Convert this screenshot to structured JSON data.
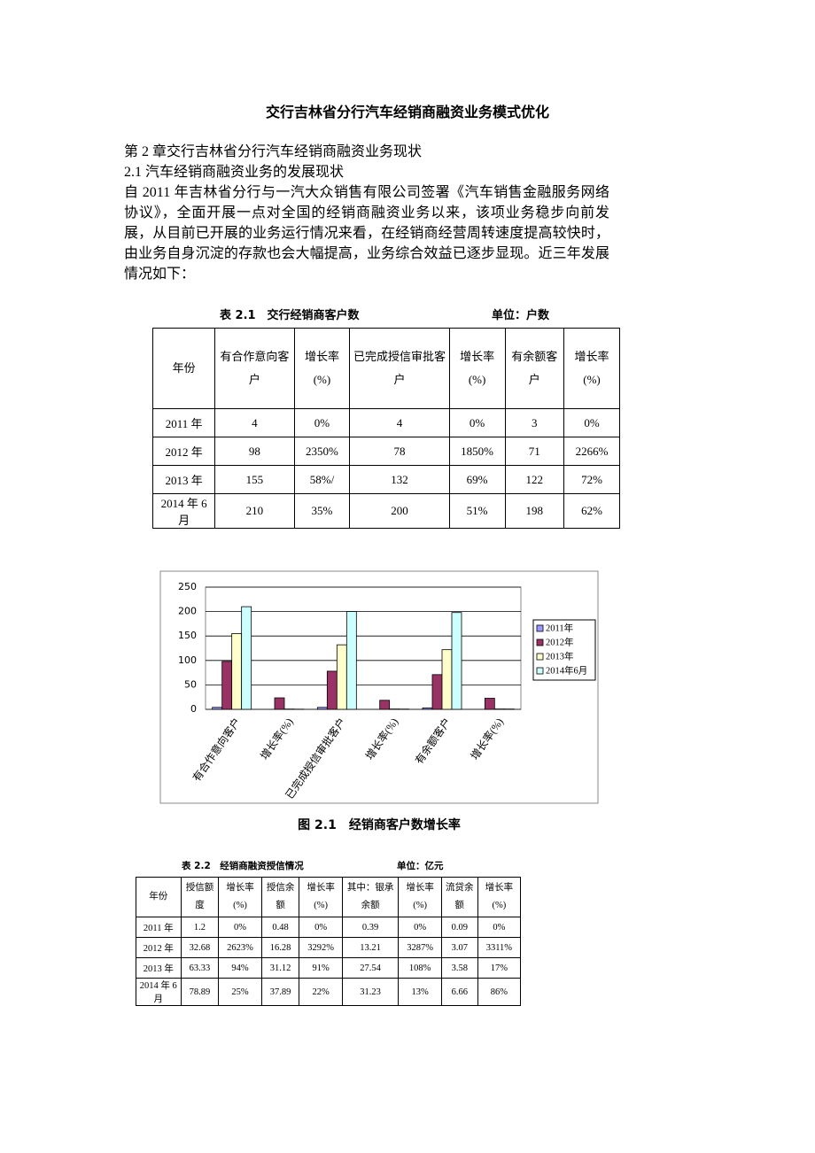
{
  "title": "交行吉林省分行汽车经销商融资业务模式优化",
  "paragraphs": [
    "第 2 章交行吉林省分行汽车经销商融资业务现状",
    "2.1 汽车经销商融资业务的发展现状",
    "自 2011 年吉林省分行与一汽大众销售有限公司签署《汽车销售金融服务网络协议》，全面开展一点对全国的经销商融资业务以来，该项业务稳步向前发展，从目前已开展的业务运行情况来看，在经销商经营周转速度提高较快时，由业务自身沉淀的存款也会大幅提高，业务综合效益已逐步显现。近三年发展情况如下："
  ],
  "table1": {
    "caption": "表 2.1　交行经销商客户数",
    "unit": "单位：户数",
    "header": [
      "年份",
      "有合作意向客户",
      "增长率(%)",
      "已完成授信审批客户",
      "增长率(%)",
      "有余额客户",
      "增长率(%)"
    ],
    "rows": [
      [
        "2011 年",
        "4",
        "0%",
        "4",
        "0%",
        "3",
        "0%"
      ],
      [
        "2012 年",
        "98",
        "2350%",
        "78",
        "1850%",
        "71",
        "2266%"
      ],
      [
        "2013 年",
        "155",
        "58%/",
        "132",
        "69%",
        "122",
        "72%"
      ],
      [
        "2014 年 6 月",
        "210",
        "35%",
        "200",
        "51%",
        "198",
        "62%"
      ]
    ]
  },
  "chart_data": {
    "type": "bar",
    "title": "图 2.1　经销商客户数增长率",
    "categories": [
      "有合作意向客户",
      "增长率(%)",
      "已完成授信审批客户",
      "增长率(%)",
      "有余额客户",
      "增长率(%)"
    ],
    "series": [
      {
        "name": "2011年",
        "color": "#9999ff",
        "values": [
          4,
          0,
          4,
          0,
          3,
          0
        ]
      },
      {
        "name": "2012年",
        "color": "#993366",
        "values": [
          98,
          23.5,
          78,
          18.5,
          71,
          22.66
        ]
      },
      {
        "name": "2013年",
        "color": "#ffffcc",
        "values": [
          155,
          0.58,
          132,
          0.69,
          122,
          0.72
        ]
      },
      {
        "name": "2014年6月",
        "color": "#ccffff",
        "values": [
          210,
          0.35,
          200,
          0.51,
          198,
          0.62
        ]
      }
    ],
    "ylim": [
      0,
      250
    ],
    "yticks": [
      0,
      50,
      100,
      150,
      200,
      250
    ],
    "grid": true,
    "legend": "right"
  },
  "table2": {
    "caption": "表 2.2　经销商融资授信情况",
    "unit": "单位：亿元",
    "header": [
      "年份",
      "授信额度",
      "增长率(%)",
      "授信余额",
      "增长率(%)",
      "其中：银承余额",
      "增长率(%)",
      "流贷余额",
      "增长率(%)"
    ],
    "rows": [
      [
        "2011 年",
        "1.2",
        "0%",
        "0.48",
        "0%",
        "0.39",
        "0%",
        "0.09",
        "0%"
      ],
      [
        "2012 年",
        "32.68",
        "2623%",
        "16.28",
        "3292%",
        "13.21",
        "3287%",
        "3.07",
        "3311%"
      ],
      [
        "2013 年",
        "63.33",
        "94%",
        "31.12",
        "91%",
        "27.54",
        "108%",
        "3.58",
        "17%"
      ],
      [
        "2014 年 6 月",
        "78.89",
        "25%",
        "37.89",
        "22%",
        "31.23",
        "13%",
        "6.66",
        "86%"
      ]
    ]
  }
}
